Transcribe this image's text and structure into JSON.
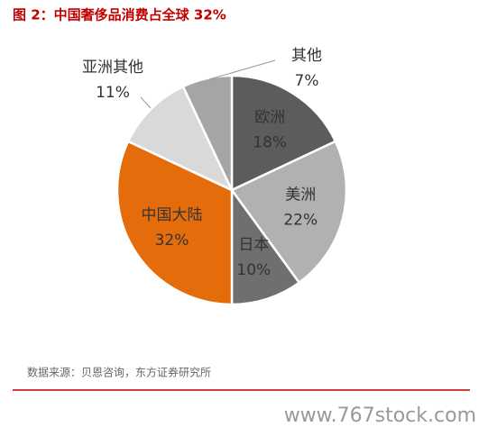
{
  "chart_data": {
    "type": "pie",
    "title": "图 2：中国奢侈品消费占全球 32%",
    "categories": [
      "欧洲",
      "美洲",
      "日本",
      "中国大陆",
      "亚洲其他",
      "其他"
    ],
    "values": [
      18,
      22,
      10,
      32,
      11,
      7
    ],
    "value_labels": [
      "18%",
      "22%",
      "10%",
      "32%",
      "11%",
      "7%"
    ],
    "colors": [
      "#5c5c5c",
      "#b1b1b1",
      "#6f6f6f",
      "#e46c0a",
      "#d9d9d9",
      "#a5a5a5"
    ]
  },
  "source": "数据来源：贝恩咨询，东方证券研究所",
  "watermark": "www.767stock.com"
}
